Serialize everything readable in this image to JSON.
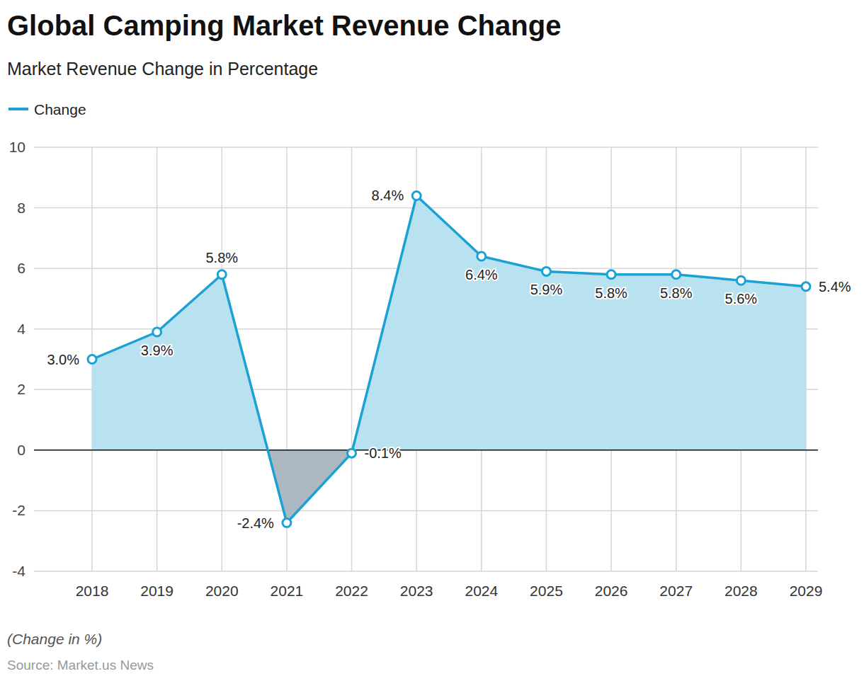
{
  "chart_data": {
    "type": "area",
    "title": "Global Camping Market Revenue Change",
    "subtitle": "Market Revenue Change in Percentage",
    "note": "(Change in %)",
    "source": "Source: Market.us News",
    "categories": [
      "2018",
      "2019",
      "2020",
      "2021",
      "2022",
      "2023",
      "2024",
      "2025",
      "2026",
      "2027",
      "2028",
      "2029"
    ],
    "series": [
      {
        "name": "Change",
        "color": "#1ba1d4",
        "marker": "circle",
        "values": [
          3.0,
          3.9,
          5.8,
          -2.4,
          -0.1,
          8.4,
          6.4,
          5.9,
          5.8,
          5.8,
          5.6,
          5.4
        ],
        "value_labels": [
          "3.0%",
          "3.9%",
          "5.8%",
          "-2.4%",
          "-0.1%",
          "8.4%",
          "6.4%",
          "5.9%",
          "5.8%",
          "5.8%",
          "5.6%",
          "5.4%"
        ]
      }
    ],
    "ylim": [
      -4,
      10
    ],
    "yticks": [
      -4,
      -2,
      0,
      2,
      4,
      6,
      8,
      10
    ],
    "grid": true,
    "legend": "top-left",
    "data_labels": true
  }
}
